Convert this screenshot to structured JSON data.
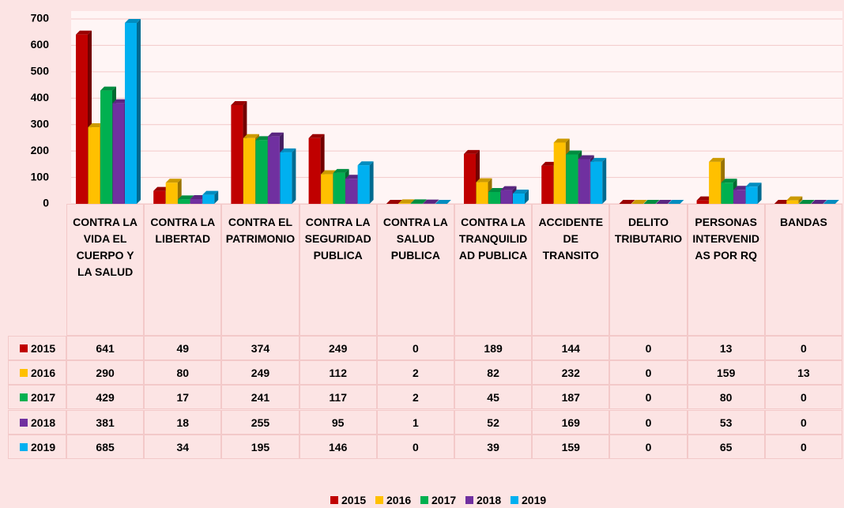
{
  "chart_data": {
    "type": "bar",
    "categories": [
      "CONTRA LA VIDA EL CUERPO Y LA SALUD",
      "CONTRA LA LIBERTAD",
      "CONTRA EL PATRIMONIO",
      "CONTRA LA SEGURIDAD PUBLICA",
      "CONTRA LA SALUD PUBLICA",
      "CONTRA LA TRANQUILIDAD PUBLICA",
      "ACCIDENTE DE TRANSITO",
      "DELITO TRIBUTARIO",
      "PERSONAS INTERVENIDAS POR RQ",
      "BANDAS"
    ],
    "series": [
      {
        "name": "2015",
        "color": "#c00000",
        "values": [
          641,
          49,
          374,
          249,
          0,
          189,
          144,
          0,
          13,
          0
        ]
      },
      {
        "name": "2016",
        "color": "#ffc000",
        "values": [
          290,
          80,
          249,
          112,
          2,
          82,
          232,
          0,
          159,
          13
        ]
      },
      {
        "name": "2017",
        "color": "#00b050",
        "values": [
          429,
          17,
          241,
          117,
          2,
          45,
          187,
          0,
          80,
          0
        ]
      },
      {
        "name": "2018",
        "color": "#7030a0",
        "values": [
          381,
          18,
          255,
          95,
          1,
          52,
          169,
          0,
          53,
          0
        ]
      },
      {
        "name": "2019",
        "color": "#00b0f0",
        "values": [
          685,
          34,
          195,
          146,
          0,
          39,
          159,
          0,
          65,
          0
        ]
      }
    ],
    "ylim": [
      0,
      700
    ],
    "yticks": [
      0,
      100,
      200,
      300,
      400,
      500,
      600,
      700
    ],
    "grid": true
  }
}
